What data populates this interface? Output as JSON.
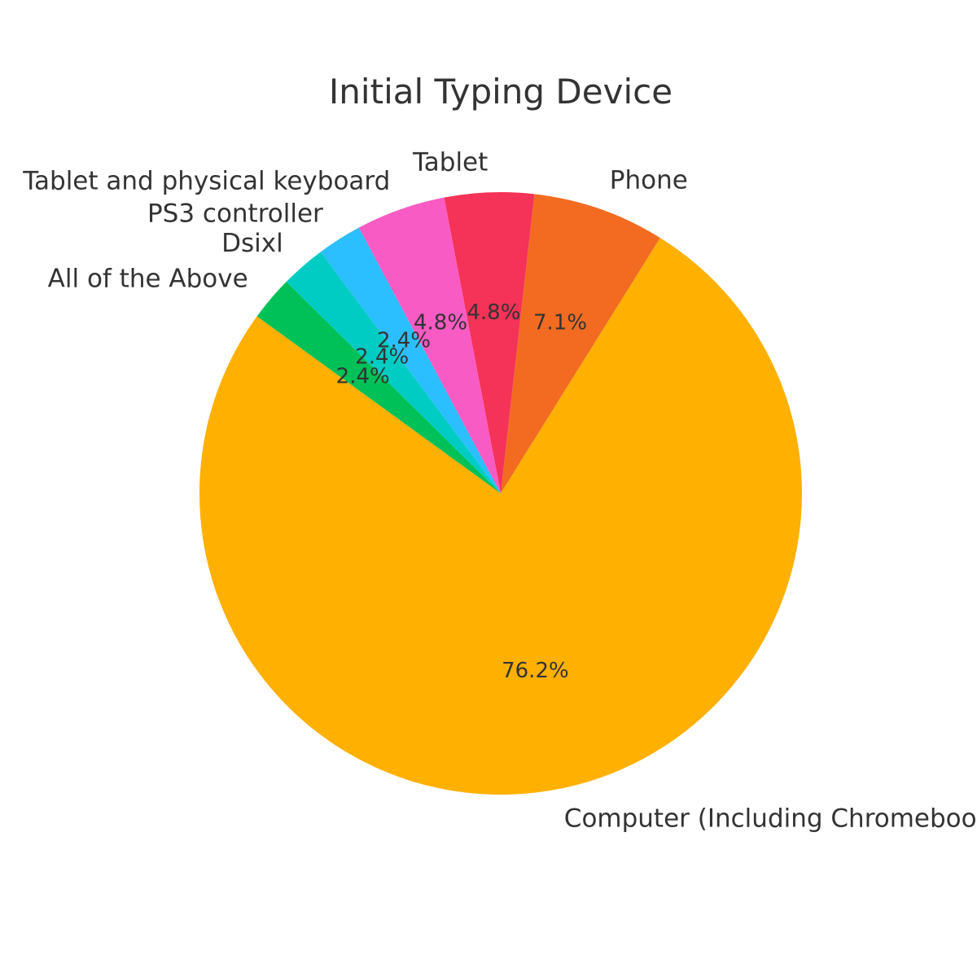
{
  "chart_data": {
    "type": "pie",
    "title": "Initial Typing Device",
    "categories": [
      "Computer (Including Chromebook)",
      "Phone",
      "Tablet",
      "Tablet and physical keyboard",
      "PS3 controller",
      "Dsixl",
      "All of the Above"
    ],
    "values": [
      76.2,
      7.1,
      4.8,
      4.8,
      2.4,
      2.4,
      2.4
    ],
    "value_labels": [
      "76.2%",
      "7.1%",
      "4.8%",
      "4.8%",
      "2.4%",
      "2.4%",
      "2.4%"
    ],
    "colors": [
      "#FFB000",
      "#F26B21",
      "#F53257",
      "#F95BC4",
      "#2BBFFF",
      "#00CCC4",
      "#00C157"
    ],
    "start_angle_deg": 144,
    "direction": "counterclockwise",
    "legend": "none"
  }
}
